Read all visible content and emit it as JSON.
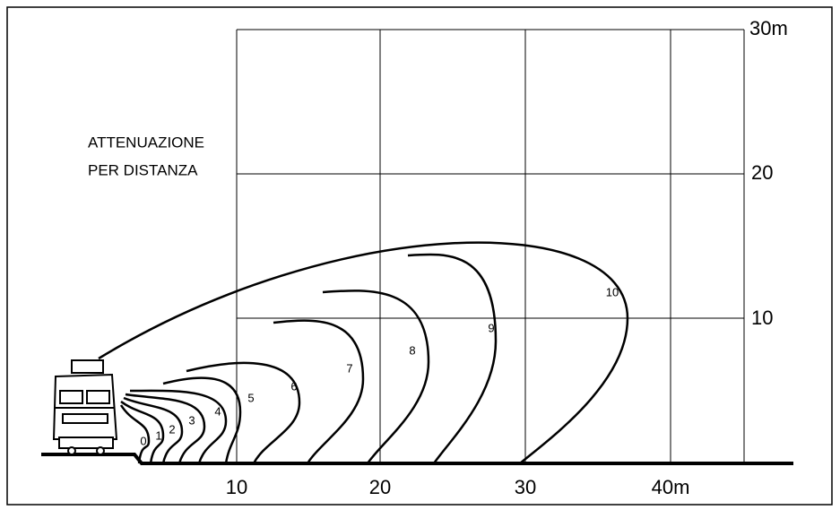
{
  "heading": [
    "ATTENUAZIONE",
    "PER DISTANZA"
  ],
  "x_axis_labels": [
    "10",
    "20",
    "30",
    "40m"
  ],
  "y_axis_labels": [
    "10",
    "20",
    "30m"
  ],
  "curve_labels": [
    "0",
    "1",
    "2",
    "3",
    "4",
    "5",
    "6",
    "7",
    "8",
    "9",
    "10"
  ]
}
